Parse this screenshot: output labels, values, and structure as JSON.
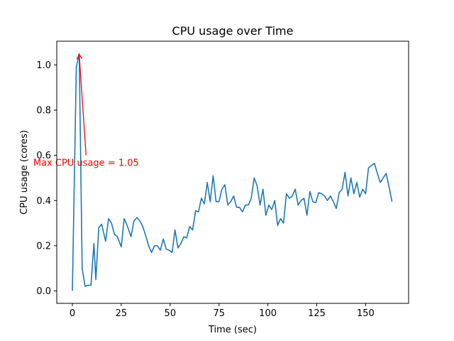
{
  "chart_data": {
    "type": "line",
    "title": "CPU usage over Time",
    "xlabel": "Time (sec)",
    "ylabel": "CPU usage (cores)",
    "xlim": [
      -8,
      172
    ],
    "ylim": [
      -0.055,
      1.105
    ],
    "xticks": [
      0,
      25,
      50,
      75,
      100,
      125,
      150
    ],
    "xtick_labels": [
      "0",
      "25",
      "50",
      "75",
      "100",
      "125",
      "150"
    ],
    "yticks": [
      0.0,
      0.2,
      0.4,
      0.6,
      0.8,
      1.0
    ],
    "ytick_labels": [
      "0.0",
      "0.2",
      "0.4",
      "0.6",
      "0.8",
      "1.0"
    ],
    "grid": false,
    "line_color": "#1f77b4",
    "series": [
      {
        "name": "CPU usage",
        "x": [
          0,
          2,
          3.5,
          5,
          6.5,
          8,
          9.5,
          11,
          12,
          13.5,
          15,
          17,
          18.5,
          20,
          21.5,
          23,
          25,
          26.5,
          28,
          30,
          31.5,
          33,
          34.5,
          36,
          37.5,
          39,
          40.5,
          42,
          43.5,
          45,
          46.5,
          48,
          49.5,
          51,
          52.5,
          54,
          55.5,
          57,
          58.5,
          60,
          61.5,
          63,
          64.5,
          66,
          67.5,
          69,
          70.5,
          72,
          73.5,
          75,
          76.5,
          78,
          79.5,
          81,
          82.5,
          84,
          85.5,
          87,
          88.5,
          90,
          91.5,
          93,
          94.5,
          96,
          97.5,
          99,
          100.5,
          102,
          103.5,
          105,
          106.5,
          108,
          109.5,
          111,
          112.5,
          114,
          115.5,
          117,
          118.5,
          120,
          121.5,
          123,
          124.5,
          126,
          127.5,
          129,
          130.5,
          132,
          133.5,
          135,
          136.5,
          138,
          139.5,
          141,
          142.5,
          144,
          145.5,
          147,
          148.5,
          150,
          151.5,
          153,
          154.5,
          156,
          157.5,
          159,
          160.5,
          162,
          163.5
        ],
        "values": [
          0.0,
          0.99,
          1.05,
          0.1,
          0.02,
          0.025,
          0.025,
          0.21,
          0.05,
          0.28,
          0.295,
          0.22,
          0.32,
          0.3,
          0.25,
          0.24,
          0.195,
          0.32,
          0.29,
          0.24,
          0.31,
          0.325,
          0.31,
          0.285,
          0.245,
          0.2,
          0.17,
          0.2,
          0.2,
          0.18,
          0.23,
          0.185,
          0.18,
          0.17,
          0.27,
          0.19,
          0.21,
          0.24,
          0.235,
          0.285,
          0.27,
          0.355,
          0.35,
          0.41,
          0.385,
          0.48,
          0.395,
          0.51,
          0.395,
          0.395,
          0.45,
          0.47,
          0.38,
          0.395,
          0.42,
          0.37,
          0.37,
          0.35,
          0.38,
          0.38,
          0.41,
          0.5,
          0.465,
          0.38,
          0.45,
          0.335,
          0.38,
          0.36,
          0.4,
          0.29,
          0.32,
          0.3,
          0.43,
          0.41,
          0.42,
          0.45,
          0.38,
          0.4,
          0.41,
          0.335,
          0.44,
          0.395,
          0.39,
          0.435,
          0.43,
          0.42,
          0.4,
          0.42,
          0.395,
          0.365,
          0.435,
          0.45,
          0.525,
          0.42,
          0.5,
          0.43,
          0.48,
          0.415,
          0.45,
          0.43,
          0.545,
          0.555,
          0.565,
          0.52,
          0.48,
          0.5,
          0.52,
          0.46,
          0.395
        ]
      }
    ],
    "annotations": [
      {
        "text": "Max CPU usage = 1.05",
        "color": "#ff0000",
        "xy": [
          3.5,
          1.05
        ],
        "xytext": [
          7,
          0.6
        ]
      }
    ]
  }
}
